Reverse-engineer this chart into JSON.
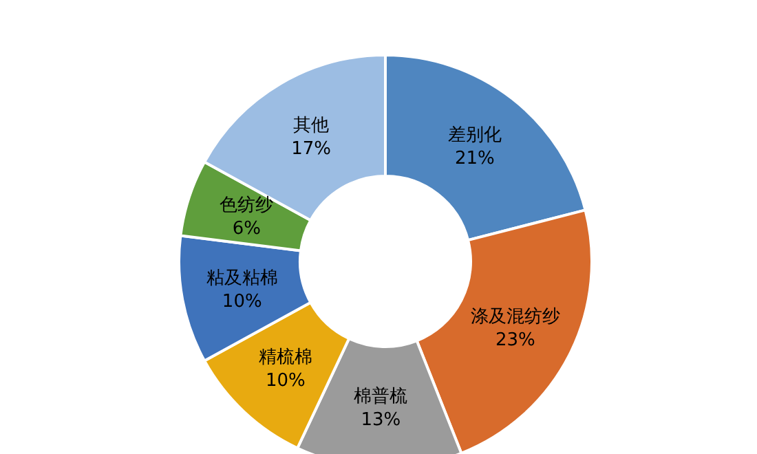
{
  "chart_data": {
    "type": "donut",
    "categories": [
      "差别化",
      "涤及混纺纱",
      "棉普梳",
      "精梳棉",
      "粘及粘棉",
      "色纺纱",
      "其他"
    ],
    "values": [
      21,
      23,
      13,
      10,
      10,
      6,
      17
    ],
    "value_labels": [
      "21%",
      "23%",
      "13%",
      "10%",
      "10%",
      "6%",
      "17%"
    ],
    "colors": [
      "#4f86c0",
      "#d86b2c",
      "#9b9b9b",
      "#e8aa10",
      "#3f73bb",
      "#5f9e3c",
      "#9cbde3"
    ]
  }
}
